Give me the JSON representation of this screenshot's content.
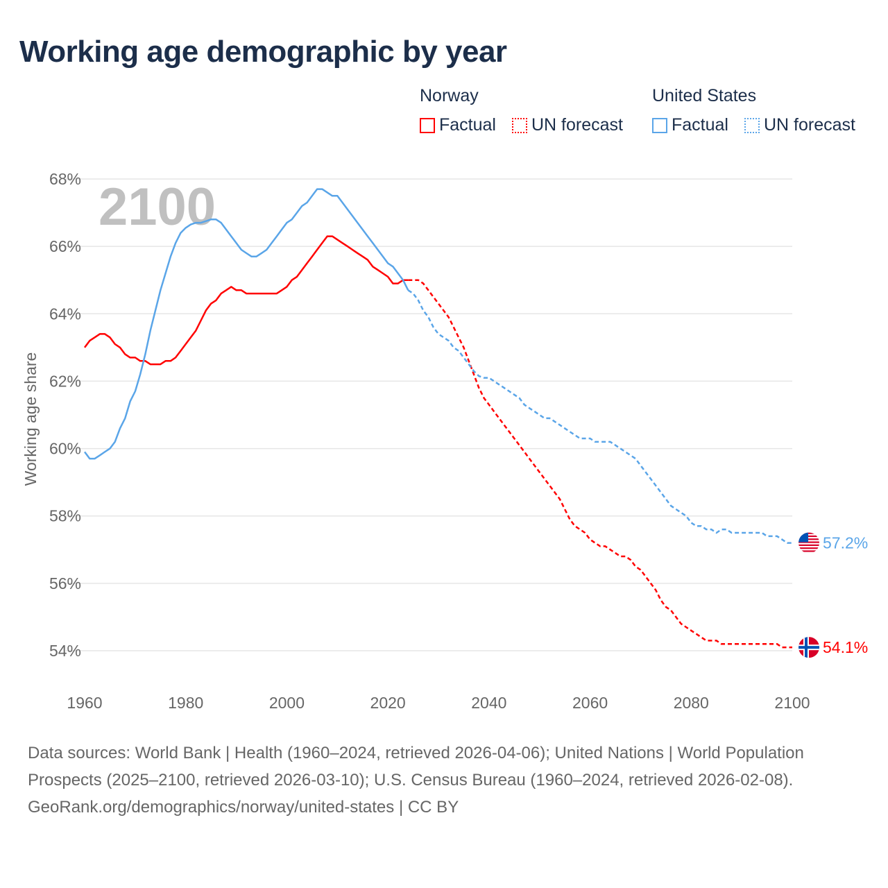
{
  "title": "Working age demographic by year",
  "legend": {
    "norway": {
      "label": "Norway",
      "factual": "Factual",
      "forecast": "UN forecast"
    },
    "us": {
      "label": "United States",
      "factual": "Factual",
      "forecast": "UN forecast"
    }
  },
  "footer": {
    "sources": "Data sources: World Bank | Health (1960–2024, retrieved 2026-04-06); United Nations | World Population Prospects (2025–2100, retrieved 2026-03-10); U.S. Census Bureau (1960–2024, retrieved 2026-02-08).",
    "credit": "GeoRank.org/demographics/norway/united-states | CC BY"
  },
  "chart_data": {
    "type": "line",
    "title": "Working age demographic by year",
    "xlabel": "",
    "ylabel": "Working age share",
    "year_watermark": "2100",
    "xlim": [
      1960,
      2100
    ],
    "ylim": [
      54,
      68
    ],
    "x_ticks": [
      "1960",
      "1980",
      "2000",
      "2020",
      "2040",
      "2060",
      "2080",
      "2100"
    ],
    "y_ticks": [
      "54%",
      "56%",
      "58%",
      "60%",
      "62%",
      "64%",
      "66%",
      "68%"
    ],
    "grid": true,
    "legend_position": "top-right",
    "start_year": 1960,
    "forecast_start_year": 2024,
    "series": [
      {
        "name": "Norway",
        "color": "#ff0000",
        "end_label": "54.1%",
        "flag": "norway-flag",
        "values": [
          63.0,
          63.2,
          63.3,
          63.4,
          63.4,
          63.3,
          63.1,
          63.0,
          62.8,
          62.7,
          62.7,
          62.6,
          62.6,
          62.5,
          62.5,
          62.5,
          62.6,
          62.6,
          62.7,
          62.9,
          63.1,
          63.3,
          63.5,
          63.8,
          64.1,
          64.3,
          64.4,
          64.6,
          64.7,
          64.8,
          64.7,
          64.7,
          64.6,
          64.6,
          64.6,
          64.6,
          64.6,
          64.6,
          64.6,
          64.7,
          64.8,
          65.0,
          65.1,
          65.3,
          65.5,
          65.7,
          65.9,
          66.1,
          66.3,
          66.3,
          66.2,
          66.1,
          66.0,
          65.9,
          65.8,
          65.7,
          65.6,
          65.4,
          65.3,
          65.2,
          65.1,
          64.9,
          64.9,
          65.0,
          65.0,
          65.0,
          65.0,
          64.9,
          64.7,
          64.5,
          64.3,
          64.1,
          63.9,
          63.6,
          63.3,
          63.0,
          62.6,
          62.2,
          61.8,
          61.5,
          61.3,
          61.1,
          60.9,
          60.7,
          60.5,
          60.3,
          60.1,
          59.9,
          59.7,
          59.5,
          59.3,
          59.1,
          58.9,
          58.7,
          58.5,
          58.2,
          57.9,
          57.7,
          57.6,
          57.5,
          57.3,
          57.2,
          57.1,
          57.1,
          57.0,
          56.9,
          56.8,
          56.8,
          56.7,
          56.5,
          56.4,
          56.2,
          56.0,
          55.8,
          55.5,
          55.3,
          55.2,
          55.0,
          54.8,
          54.7,
          54.6,
          54.5,
          54.4,
          54.3,
          54.3,
          54.3,
          54.2,
          54.2,
          54.2,
          54.2,
          54.2,
          54.2,
          54.2,
          54.2,
          54.2,
          54.2,
          54.2,
          54.2,
          54.1,
          54.1,
          54.1
        ]
      },
      {
        "name": "United States",
        "color": "#5aa5e8",
        "end_label": "57.2%",
        "flag": "us-flag",
        "values": [
          59.9,
          59.7,
          59.7,
          59.8,
          59.9,
          60.0,
          60.2,
          60.6,
          60.9,
          61.4,
          61.7,
          62.2,
          62.8,
          63.5,
          64.1,
          64.7,
          65.2,
          65.7,
          66.1,
          66.4,
          66.55,
          66.65,
          66.7,
          66.7,
          66.75,
          66.8,
          66.8,
          66.7,
          66.5,
          66.3,
          66.1,
          65.9,
          65.8,
          65.7,
          65.7,
          65.8,
          65.9,
          66.1,
          66.3,
          66.5,
          66.7,
          66.8,
          67.0,
          67.2,
          67.3,
          67.5,
          67.7,
          67.7,
          67.6,
          67.5,
          67.5,
          67.3,
          67.1,
          66.9,
          66.7,
          66.5,
          66.3,
          66.1,
          65.9,
          65.7,
          65.5,
          65.4,
          65.2,
          65.0,
          64.7,
          64.6,
          64.4,
          64.1,
          63.9,
          63.6,
          63.4,
          63.3,
          63.2,
          63.0,
          62.9,
          62.7,
          62.5,
          62.3,
          62.15,
          62.1,
          62.1,
          62.0,
          61.9,
          61.8,
          61.7,
          61.6,
          61.5,
          61.3,
          61.2,
          61.1,
          61.0,
          60.9,
          60.9,
          60.8,
          60.7,
          60.6,
          60.5,
          60.4,
          60.3,
          60.3,
          60.3,
          60.2,
          60.2,
          60.2,
          60.2,
          60.1,
          60.0,
          59.9,
          59.8,
          59.7,
          59.5,
          59.3,
          59.1,
          58.9,
          58.7,
          58.5,
          58.3,
          58.2,
          58.1,
          58.0,
          57.8,
          57.7,
          57.7,
          57.6,
          57.6,
          57.5,
          57.6,
          57.6,
          57.5,
          57.5,
          57.5,
          57.5,
          57.5,
          57.5,
          57.5,
          57.4,
          57.4,
          57.4,
          57.3,
          57.2,
          57.2
        ]
      }
    ]
  }
}
